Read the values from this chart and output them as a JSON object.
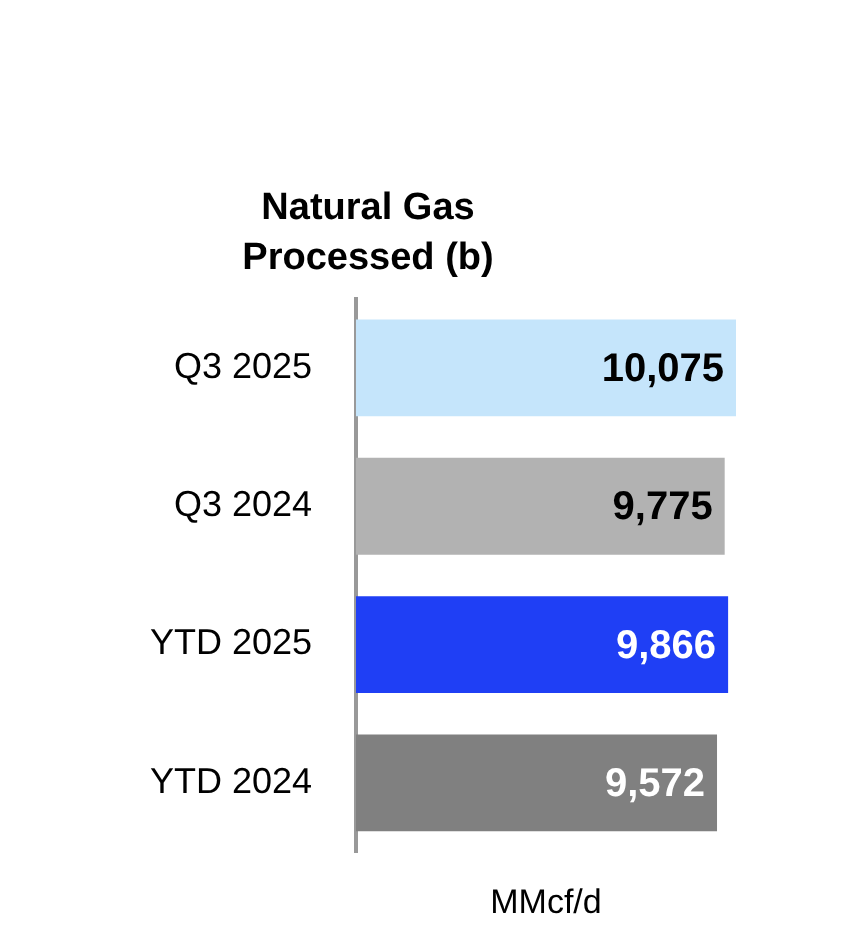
{
  "chart_data": {
    "type": "bar",
    "orientation": "horizontal",
    "title": "Natural Gas\nProcessed (b)",
    "xlabel": "MMcf/d",
    "categories": [
      "Q3 2025",
      "Q3 2024",
      "YTD 2025",
      "YTD 2024"
    ],
    "values": [
      10075,
      9775,
      9866,
      9572
    ],
    "colors": [
      "#c5e5fb",
      "#b2b2b2",
      "#1f3ff5",
      "#808080"
    ],
    "value_labels": [
      "10,075",
      "9,775",
      "9,866",
      "9,572"
    ],
    "grid": false,
    "legend": false
  }
}
